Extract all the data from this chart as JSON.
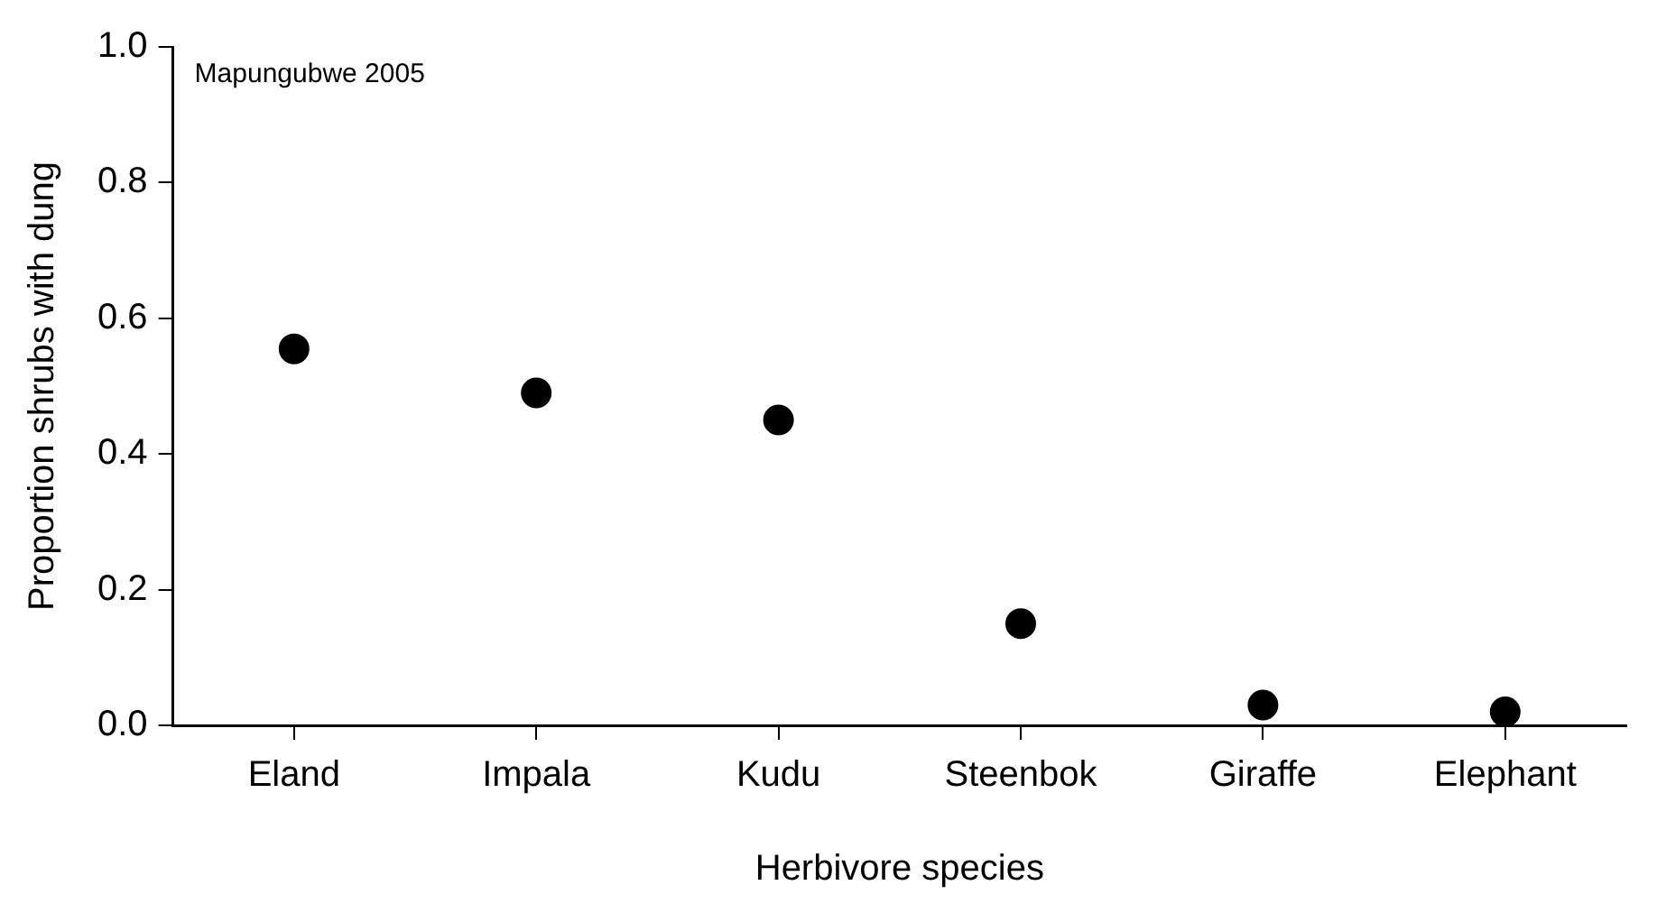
{
  "chart_data": {
    "type": "scatter",
    "xlabel": "Herbivore species",
    "ylabel": "Proportion shrubs with dung",
    "categories": [
      "Eland",
      "Impala",
      "Kudu",
      "Steenbok",
      "Giraffe",
      "Elephant"
    ],
    "values": [
      0.555,
      0.49,
      0.45,
      0.15,
      0.03,
      0.02
    ],
    "color": "#000000",
    "marker": "circle",
    "ylim": [
      0,
      1
    ],
    "yticks": [
      {
        "value": 0,
        "label": "0.0"
      },
      {
        "value": 0.2,
        "label": "0.2"
      },
      {
        "value": 0.4,
        "label": "0.4"
      },
      {
        "value": 0.6,
        "label": "0.6"
      },
      {
        "value": 0.8,
        "label": "0.8"
      },
      {
        "value": 1,
        "label": "1.0"
      }
    ],
    "annotations": [
      "Mapungubwe 2005"
    ],
    "grid": false,
    "legend": false
  }
}
